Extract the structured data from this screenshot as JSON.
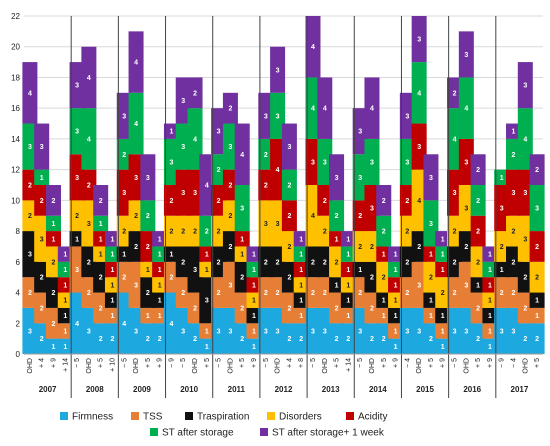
{
  "chart_data": {
    "type": "bar",
    "stacked": true,
    "ylim": [
      0,
      22
    ],
    "yticks": [
      0,
      2,
      4,
      6,
      8,
      10,
      12,
      14,
      16,
      18,
      20,
      22
    ],
    "grid": true,
    "legend_position": "bottom",
    "series": [
      {
        "name": "Firmness",
        "color": "#1ea8e0"
      },
      {
        "name": "TSS",
        "color": "#e67e36"
      },
      {
        "name": "Traspiration",
        "color": "#111111"
      },
      {
        "name": "Disorders",
        "color": "#ffc000"
      },
      {
        "name": "Acidity",
        "color": "#c00000"
      },
      {
        "name": "ST after storage",
        "color": "#00b050"
      },
      {
        "name": "ST after storage+ 1 week",
        "color": "#7030a0"
      }
    ],
    "groups": [
      {
        "year": "2007",
        "bars": [
          {
            "label": "OHD",
            "values": [
              3,
              2,
              3,
              2,
              2,
              3,
              4
            ]
          },
          {
            "label": "+ 4",
            "values": [
              2,
              2,
              2,
              3,
              2,
              1,
              3
            ]
          },
          {
            "label": "+ 9",
            "values": [
              1,
              2,
              2,
              2,
              1,
              1,
              2
            ]
          },
          {
            "label": "+ 14",
            "values": [
              1,
              1,
              1,
              1,
              1,
              1,
              1
            ]
          }
        ]
      },
      {
        "year": "2008",
        "bars": [
          {
            "label": "− 5",
            "values": [
              4,
              3,
              1,
              2,
              3,
              3,
              3
            ]
          },
          {
            "label": "OHD",
            "values": [
              3,
              2,
              2,
              3,
              2,
              4,
              4
            ]
          },
          {
            "label": "+ 5",
            "values": [
              2,
              2,
              2,
              1,
              1,
              1,
              2
            ]
          },
          {
            "label": "+ 10",
            "values": [
              2,
              1,
              1,
              1,
              1,
              1,
              1
            ]
          }
        ]
      },
      {
        "year": "2009",
        "bars": [
          {
            "label": "− 5",
            "values": [
              4,
              2,
              1,
              2,
              3,
              2,
              3
            ]
          },
          {
            "label": "OHD",
            "values": [
              3,
              3,
              2,
              2,
              3,
              4,
              4
            ]
          },
          {
            "label": "+ 5",
            "values": [
              2,
              1,
              2,
              1,
              2,
              2,
              3
            ]
          },
          {
            "label": "+ 9",
            "values": [
              2,
              1,
              1,
              1,
              1,
              1,
              1
            ]
          }
        ]
      },
      {
        "year": "2010",
        "bars": [
          {
            "label": "− 9",
            "values": [
              4,
              2,
              1,
              2,
              2,
              3,
              1
            ]
          },
          {
            "label": "− 5",
            "values": [
              3,
              2,
              2,
              2,
              3,
              3,
              3
            ]
          },
          {
            "label": "OHD",
            "values": [
              2,
              2,
              3,
              2,
              3,
              4,
              2
            ]
          },
          {
            "label": "+ 5",
            "values": [
              1,
              1,
              3,
              1,
              1,
              2,
              4
            ]
          }
        ]
      },
      {
        "year": "2011",
        "bars": [
          {
            "label": "− 5",
            "values": [
              3,
              2,
              2,
              2,
              2,
              2,
              3
            ]
          },
          {
            "label": "OHD",
            "values": [
              3,
              3,
              2,
              2,
              2,
              3,
              2
            ]
          },
          {
            "label": "+ 5",
            "values": [
              2,
              2,
              2,
              1,
              1,
              3,
              4
            ]
          },
          {
            "label": "+ 9",
            "values": [
              1,
              1,
              1,
              1,
              1,
              1,
              1
            ]
          }
        ]
      },
      {
        "year": "2012",
        "bars": [
          {
            "label": "− 5",
            "values": [
              3,
              2,
              2,
              3,
              2,
              2,
              3
            ]
          },
          {
            "label": "OHD",
            "values": [
              3,
              2,
              2,
              3,
              4,
              3,
              3
            ]
          },
          {
            "label": "+ 4",
            "values": [
              2,
              2,
              2,
              2,
              2,
              2,
              3
            ]
          },
          {
            "label": "+ 8",
            "values": [
              2,
              1,
              1,
              1,
              1,
              1,
              1
            ]
          }
        ]
      },
      {
        "year": "2013",
        "bars": [
          {
            "label": "− 5",
            "values": [
              3,
              2,
              2,
              4,
              3,
              4,
              4
            ]
          },
          {
            "label": "OHD",
            "values": [
              3,
              2,
              2,
              2,
              2,
              3,
              4
            ]
          },
          {
            "label": "+ 5",
            "values": [
              2,
              2,
              1,
              2,
              1,
              2,
              3
            ]
          },
          {
            "label": "+ 14",
            "values": [
              2,
              1,
              1,
              1,
              1,
              1,
              1
            ]
          }
        ]
      },
      {
        "year": "2014",
        "bars": [
          {
            "label": "− 5",
            "values": [
              3,
              2,
              1,
              2,
              2,
              3,
              3
            ]
          },
          {
            "label": "OHD",
            "values": [
              2,
              2,
              2,
              2,
              3,
              3,
              4
            ]
          },
          {
            "label": "+ 5",
            "values": [
              2,
              1,
              1,
              2,
              1,
              2,
              2
            ]
          },
          {
            "label": "+ 9",
            "values": [
              1,
              1,
              1,
              1,
              1,
              1,
              1
            ]
          }
        ]
      },
      {
        "year": "2015",
        "bars": [
          {
            "label": "− 4",
            "values": [
              3,
              2,
              2,
              2,
              2,
              3,
              3
            ]
          },
          {
            "label": "OHD",
            "values": [
              3,
              3,
              2,
              4,
              3,
              4,
              3
            ]
          },
          {
            "label": "+ 5",
            "values": [
              2,
              1,
              1,
              2,
              1,
              3,
              3
            ]
          },
          {
            "label": "+ 9",
            "values": [
              1,
              1,
              1,
              2,
              1,
              1,
              1
            ]
          }
        ]
      },
      {
        "year": "2016",
        "bars": [
          {
            "label": "− 5",
            "values": [
              3,
              2,
              2,
              2,
              3,
              4,
              2
            ]
          },
          {
            "label": "OHD",
            "values": [
              3,
              3,
              2,
              3,
              3,
              4,
              3
            ]
          },
          {
            "label": "+ 5",
            "values": [
              2,
              2,
              1,
              2,
              2,
              2,
              2
            ]
          },
          {
            "label": "+ 9",
            "values": [
              1,
              1,
              1,
              1,
              1,
              1,
              1
            ]
          }
        ]
      },
      {
        "year": "2017",
        "bars": [
          {
            "label": "− 9",
            "values": [
              3,
              2,
              1,
              2,
              3,
              1,
              0
            ]
          },
          {
            "label": "− 4",
            "values": [
              3,
              2,
              2,
              2,
              3,
              2,
              1
            ]
          },
          {
            "label": "OHD",
            "values": [
              2,
              2,
              2,
              3,
              3,
              4,
              3
            ]
          },
          {
            "label": "+ 5",
            "values": [
              2,
              1,
              1,
              2,
              2,
              3,
              2
            ]
          }
        ]
      }
    ]
  }
}
